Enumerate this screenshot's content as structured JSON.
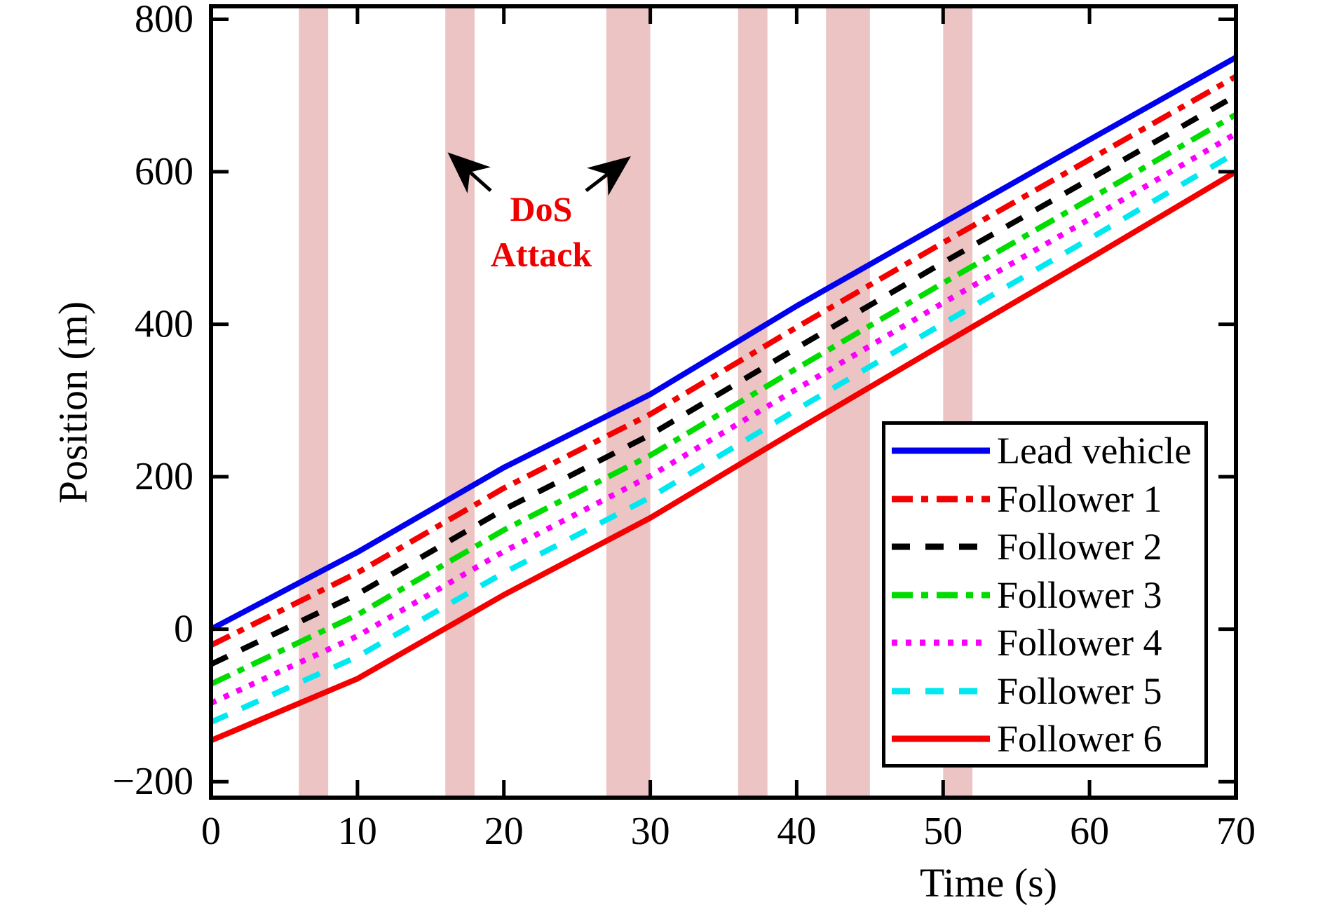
{
  "figure": {
    "kind": "vehicle platoon position vs time plot with DoS attack intervals"
  },
  "chart_data": {
    "type": "line",
    "title": "",
    "xlabel": "Time (s)",
    "ylabel": "Position (m)",
    "xlim": [
      0,
      70
    ],
    "ylim": [
      -221,
      817
    ],
    "x_ticks": [
      0,
      10,
      20,
      30,
      40,
      50,
      60,
      70
    ],
    "y_ticks": [
      -200,
      0,
      200,
      400,
      600,
      800
    ],
    "grid": false,
    "x": [
      0,
      10,
      20,
      30,
      40,
      50,
      60,
      70
    ],
    "series": [
      {
        "name": "Lead vehicle",
        "color": "#0000ee",
        "style": "solid",
        "values": [
          0,
          101,
          212,
          308,
          424,
          533,
          642,
          750
        ]
      },
      {
        "name": "Follower 1",
        "color": "#f40000",
        "style": "dashdot",
        "values": [
          -21,
          74,
          185,
          282,
          396,
          507,
          616,
          725
        ]
      },
      {
        "name": "Follower 2",
        "color": "#000000",
        "style": "dashed",
        "values": [
          -46,
          46,
          157,
          255,
          369,
          481,
          590,
          700
        ]
      },
      {
        "name": "Follower 3",
        "color": "#00dc00",
        "style": "dashdot",
        "values": [
          -72,
          19,
          130,
          228,
          342,
          454,
          564,
          675
        ]
      },
      {
        "name": "Follower 4",
        "color": "#fa00fa",
        "style": "dotted",
        "values": [
          -97,
          -9,
          102,
          201,
          315,
          428,
          538,
          650
        ]
      },
      {
        "name": "Follower 5",
        "color": "#00e8f0",
        "style": "dashed",
        "values": [
          -122,
          -36,
          74,
          173,
          288,
          401,
          512,
          625
        ]
      },
      {
        "name": "Follower 6",
        "color": "#f40000",
        "style": "solid",
        "values": [
          -146,
          -65,
          45,
          146,
          261,
          374,
          486,
          600
        ]
      }
    ],
    "attack_bands": {
      "color": "#edc4c4",
      "intervals_s": [
        [
          6,
          8
        ],
        [
          16,
          18
        ],
        [
          27,
          30
        ],
        [
          36,
          38
        ],
        [
          42,
          45
        ],
        [
          50,
          52
        ]
      ]
    },
    "annotation": {
      "text_line1": "DoS",
      "text_line2": "Attack",
      "color": "#ee0000"
    },
    "legend": {
      "position": "lower right",
      "entries": [
        "Lead vehicle",
        "Follower 1",
        "Follower 2",
        "Follower 3",
        "Follower 4",
        "Follower 5",
        "Follower 6"
      ]
    }
  }
}
